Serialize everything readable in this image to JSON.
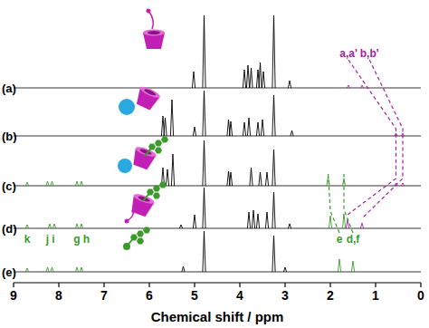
{
  "chart_data": {
    "type": "nmr_stack",
    "x_label": "Chemical shift / ppm",
    "xlim": [
      9,
      0
    ],
    "xticks": [
      9,
      8,
      7,
      6,
      5,
      4,
      3,
      2,
      1,
      0
    ],
    "tick_labels": "x",
    "series": [
      {
        "name": "(a)",
        "color": "#000000",
        "x": [
          5.02,
          4.79,
          3.9,
          3.82,
          3.75,
          3.6,
          3.55,
          3.48,
          3.25,
          2.9,
          1.6,
          1.3
        ],
        "values": [
          18,
          80,
          20,
          25,
          22,
          20,
          28,
          18,
          80,
          8,
          3,
          3
        ],
        "colors": [
          "#000000",
          "#000000",
          "#000000",
          "#000000",
          "#000000",
          "#000000",
          "#000000",
          "#000000",
          "#000000",
          "#000000",
          "#a3229f",
          "#a3229f"
        ]
      },
      {
        "name": "(b)",
        "color": "#000000",
        "x": [
          5.7,
          5.65,
          5.5,
          5.0,
          4.79,
          4.25,
          4.2,
          3.9,
          3.8,
          3.6,
          3.5,
          3.25,
          2.85,
          0.55,
          0.4
        ],
        "values": [
          22,
          20,
          40,
          10,
          50,
          18,
          16,
          15,
          20,
          15,
          18,
          45,
          6,
          3,
          3
        ],
        "colors": [
          "#000000",
          "#000000",
          "#000000",
          "#000000",
          "#000000",
          "#000000",
          "#000000",
          "#000000",
          "#000000",
          "#000000",
          "#000000",
          "#000000",
          "#000000",
          "#a3229f",
          "#a3229f"
        ]
      },
      {
        "name": "(c)",
        "color": "#000000",
        "x": [
          8.7,
          8.25,
          8.15,
          7.6,
          7.5,
          5.7,
          5.6,
          5.48,
          4.79,
          4.25,
          4.2,
          3.75,
          3.55,
          3.4,
          3.25,
          2.05,
          1.7,
          0.55,
          0.4
        ],
        "values": [
          4,
          5,
          5,
          5,
          5,
          20,
          18,
          35,
          50,
          16,
          15,
          20,
          15,
          15,
          40,
          10,
          8,
          3,
          3
        ],
        "colors": [
          "#3c9a2d",
          "#3c9a2d",
          "#3c9a2d",
          "#3c9a2d",
          "#3c9a2d",
          "#000000",
          "#000000",
          "#000000",
          "#000000",
          "#000000",
          "#000000",
          "#000000",
          "#000000",
          "#000000",
          "#000000",
          "#3c9a2d",
          "#3c9a2d",
          "#a3229f",
          "#a3229f"
        ]
      },
      {
        "name": "(d)",
        "color": "#000000",
        "x": [
          8.7,
          8.2,
          8.1,
          7.6,
          7.5,
          5.3,
          5.0,
          4.79,
          3.8,
          3.7,
          3.6,
          3.4,
          3.25,
          2.9,
          2.0,
          1.7,
          1.62,
          1.3
        ],
        "values": [
          4,
          5,
          5,
          5,
          5,
          4,
          15,
          45,
          18,
          20,
          16,
          18,
          40,
          5,
          14,
          16,
          10,
          6
        ],
        "colors": [
          "#3c9a2d",
          "#3c9a2d",
          "#3c9a2d",
          "#3c9a2d",
          "#3c9a2d",
          "#000000",
          "#000000",
          "#000000",
          "#000000",
          "#000000",
          "#000000",
          "#000000",
          "#000000",
          "#000000",
          "#3c9a2d",
          "#3c9a2d",
          "#a3229f",
          "#a3229f"
        ]
      },
      {
        "name": "(e)",
        "color": "#000000",
        "x": [
          8.7,
          8.25,
          8.15,
          7.6,
          7.5,
          5.25,
          4.79,
          3.25,
          3.0,
          1.8,
          1.5
        ],
        "values": [
          4,
          5,
          5,
          5,
          5,
          6,
          45,
          40,
          5,
          14,
          12
        ],
        "colors": [
          "#3c9a2d",
          "#3c9a2d",
          "#3c9a2d",
          "#3c9a2d",
          "#3c9a2d",
          "#000000",
          "#000000",
          "#000000",
          "#000000",
          "#3c9a2d",
          "#3c9a2d"
        ]
      }
    ],
    "assignments": [
      {
        "label": "a,a'",
        "color": "#a3229f",
        "shifts": [
          1.6,
          0.55,
          0.55,
          1.62,
          null
        ]
      },
      {
        "label": "b,b'",
        "color": "#a3229f",
        "shifts": [
          1.3,
          0.4,
          0.4,
          1.3,
          null
        ]
      },
      {
        "label": "e",
        "color": "#3c9a2d",
        "shifts": [
          null,
          null,
          2.05,
          2.0,
          1.8
        ]
      },
      {
        "label": "d,f",
        "color": "#3c9a2d",
        "shifts": [
          null,
          null,
          1.7,
          1.7,
          1.5
        ]
      },
      {
        "label": "k",
        "color": "#3c9a2d",
        "shifts": [
          null,
          null,
          null,
          null,
          8.7
        ]
      },
      {
        "label": "j",
        "color": "#3c9a2d",
        "shifts": [
          null,
          null,
          null,
          null,
          8.25
        ]
      },
      {
        "label": "i",
        "color": "#3c9a2d",
        "shifts": [
          null,
          null,
          null,
          null,
          8.15
        ]
      },
      {
        "label": "g",
        "color": "#3c9a2d",
        "shifts": [
          null,
          null,
          null,
          null,
          7.6
        ]
      },
      {
        "label": "h",
        "color": "#3c9a2d",
        "shifts": [
          null,
          null,
          null,
          null,
          7.5
        ]
      }
    ]
  }
}
